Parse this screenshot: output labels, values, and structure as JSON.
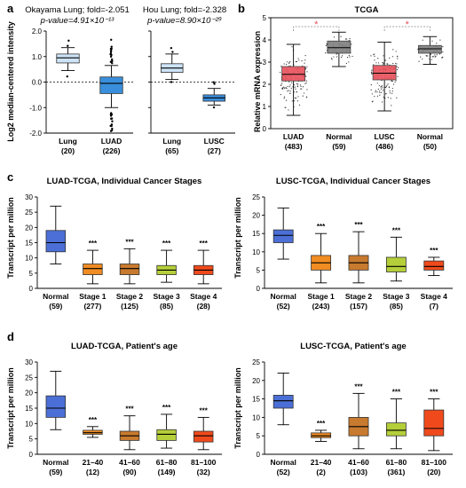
{
  "panels": {
    "a": {
      "label": "a",
      "ylabel": "Log2 median-centered intensity",
      "ylim": [
        -2.0,
        2.0
      ],
      "yticks": [
        "2.0",
        "1.0",
        "0.0",
        "-1.0",
        "-2.0"
      ],
      "left_title_line1": "Okayama Lung; fold=-2.051",
      "left_title_line2": "p-value=4.91×10⁻¹³",
      "right_title_line1": "Hou Lung; fold=-2.328",
      "right_title_line2": "p-value=8.90×10⁻²⁹"
    },
    "b": {
      "label": "b",
      "title": "TCGA",
      "ylabel": "Relative mRNA expression",
      "yticks": [
        "0",
        "1",
        "2",
        "3",
        "4",
        "5"
      ],
      "sig_marker": "*"
    },
    "c": {
      "label": "c",
      "ylabel": "Transcript per million",
      "sig_marker": "***"
    },
    "d": {
      "label": "d",
      "ylabel": "Transcript per million",
      "sig_marker": "***"
    }
  },
  "chart_data": [
    {
      "id": "a-left",
      "type": "box",
      "title": "Okayama Lung; fold=-2.051",
      "subtitle": "p-value=4.91×10⁻¹³",
      "ylabel": "Log2 median-centered intensity",
      "ylim": [
        -2.0,
        2.0
      ],
      "categories": [
        {
          "name": "Lung",
          "n": "(20)",
          "color": "#cde3f7",
          "stats": {
            "wlo": 0.45,
            "q1": 0.75,
            "med": 0.95,
            "q3": 1.1,
            "whi": 1.35
          }
        },
        {
          "name": "LUAD",
          "n": "(226)",
          "color": "#3a8fdc",
          "stats": {
            "wlo": -1.0,
            "q1": -0.45,
            "med": -0.05,
            "q3": 0.2,
            "whi": 0.65
          }
        }
      ]
    },
    {
      "id": "a-right",
      "type": "box",
      "title": "Hou Lung; fold=-2.328",
      "subtitle": "p-value=8.90×10⁻²⁹",
      "ylim": [
        -2.0,
        2.0
      ],
      "categories": [
        {
          "name": "Lung",
          "n": "(65)",
          "color": "#cde3f7",
          "stats": {
            "wlo": 0.1,
            "q1": 0.38,
            "med": 0.55,
            "q3": 0.72,
            "whi": 1.1
          }
        },
        {
          "name": "LUSC",
          "n": "(27)",
          "color": "#3a8fdc",
          "stats": {
            "wlo": -0.9,
            "q1": -0.75,
            "med": -0.62,
            "q3": -0.5,
            "whi": -0.25
          }
        }
      ]
    },
    {
      "id": "b",
      "type": "box",
      "title": "TCGA",
      "ylabel": "Relative mRNA expression",
      "ylim": [
        0,
        5
      ],
      "categories": [
        {
          "name": "LUAD",
          "n": "(483)",
          "color": "#e8505b",
          "stats": {
            "wlo": 0.6,
            "q1": 2.15,
            "med": 2.45,
            "q3": 2.8,
            "whi": 3.8
          }
        },
        {
          "name": "Normal",
          "n": "(59)",
          "color": "#7f7f7f",
          "stats": {
            "wlo": 2.8,
            "q1": 3.4,
            "med": 3.65,
            "q3": 3.95,
            "whi": 4.35
          }
        },
        {
          "name": "LUSC",
          "n": "(486)",
          "color": "#e8505b",
          "stats": {
            "wlo": 0.8,
            "q1": 2.2,
            "med": 2.5,
            "q3": 2.85,
            "whi": 3.9
          }
        },
        {
          "name": "Normal",
          "n": "(50)",
          "color": "#7f7f7f",
          "stats": {
            "wlo": 2.9,
            "q1": 3.4,
            "med": 3.6,
            "q3": 3.75,
            "whi": 4.15
          }
        }
      ],
      "significance": [
        "LUAD vs Normal",
        "LUSC vs Normal"
      ]
    },
    {
      "id": "c-left",
      "type": "box",
      "title": "LUAD-TCGA, Individual Cancer Stages",
      "ylabel": "Transcript per million",
      "ylim": [
        0,
        30
      ],
      "yticks": [
        "0",
        "5",
        "10",
        "15",
        "20",
        "25",
        "30"
      ],
      "categories": [
        {
          "name": "Normal",
          "n": "(59)",
          "color": "#4b6fd6",
          "stats": {
            "wlo": 8,
            "q1": 12,
            "med": 15,
            "q3": 19,
            "whi": 27
          },
          "sig": false
        },
        {
          "name": "Stage 1",
          "n": "(277)",
          "color": "#f08c22",
          "stats": {
            "wlo": 1.5,
            "q1": 4.5,
            "med": 6.5,
            "q3": 8,
            "whi": 12.5
          },
          "sig": true
        },
        {
          "name": "Stage 2",
          "n": "(125)",
          "color": "#c87a2e",
          "stats": {
            "wlo": 1.5,
            "q1": 4.5,
            "med": 6.5,
            "q3": 8,
            "whi": 13
          },
          "sig": true
        },
        {
          "name": "Stage 3",
          "n": "(85)",
          "color": "#b5cf3a",
          "stats": {
            "wlo": 2,
            "q1": 4.5,
            "med": 6,
            "q3": 7.5,
            "whi": 12.5
          },
          "sig": true
        },
        {
          "name": "Stage 4",
          "n": "(28)",
          "color": "#f04a1c",
          "stats": {
            "wlo": 1.5,
            "q1": 4.5,
            "med": 6,
            "q3": 7.5,
            "whi": 12.5
          },
          "sig": true
        }
      ]
    },
    {
      "id": "c-right",
      "type": "box",
      "title": "LUSC-TCGA, Individual Cancer Stages",
      "ylabel": "Transcript per million",
      "ylim": [
        0,
        25
      ],
      "yticks": [
        "0",
        "5",
        "10",
        "15",
        "20",
        "25"
      ],
      "categories": [
        {
          "name": "Normal",
          "n": "(52)",
          "color": "#4b6fd6",
          "stats": {
            "wlo": 8,
            "q1": 12.5,
            "med": 14.5,
            "q3": 16,
            "whi": 22
          },
          "sig": false
        },
        {
          "name": "Stage 1",
          "n": "(243)",
          "color": "#f08c22",
          "stats": {
            "wlo": 1.5,
            "q1": 5,
            "med": 7,
            "q3": 9,
            "whi": 15
          },
          "sig": true
        },
        {
          "name": "Stage 2",
          "n": "(157)",
          "color": "#c87a2e",
          "stats": {
            "wlo": 1.5,
            "q1": 5,
            "med": 7,
            "q3": 9,
            "whi": 15.5
          },
          "sig": true
        },
        {
          "name": "Stage 3",
          "n": "(85)",
          "color": "#b5cf3a",
          "stats": {
            "wlo": 2,
            "q1": 4.5,
            "med": 6,
            "q3": 8.5,
            "whi": 14
          },
          "sig": true
        },
        {
          "name": "Stage 4",
          "n": "(7)",
          "color": "#f04a1c",
          "stats": {
            "wlo": 3.5,
            "q1": 5,
            "med": 6,
            "q3": 7.5,
            "whi": 8.5
          },
          "sig": true
        }
      ]
    },
    {
      "id": "d-left",
      "type": "box",
      "title": "LUAD-TCGA, Patient's age",
      "ylabel": "Transcript per million",
      "ylim": [
        0,
        30
      ],
      "yticks": [
        "0",
        "5",
        "10",
        "15",
        "20",
        "25",
        "30"
      ],
      "categories": [
        {
          "name": "Normal",
          "n": "(59)",
          "color": "#4b6fd6",
          "stats": {
            "wlo": 8,
            "q1": 12,
            "med": 15,
            "q3": 19,
            "whi": 27
          },
          "sig": false
        },
        {
          "name": "21–40",
          "n": "(12)",
          "color": "#f08c22",
          "stats": {
            "wlo": 5.5,
            "q1": 6.5,
            "med": 7,
            "q3": 7.8,
            "whi": 9
          },
          "sig": true
        },
        {
          "name": "41–60",
          "n": "(90)",
          "color": "#c87a2e",
          "stats": {
            "wlo": 1.5,
            "q1": 4.5,
            "med": 6,
            "q3": 7.5,
            "whi": 12.5
          },
          "sig": true
        },
        {
          "name": "61–80",
          "n": "(149)",
          "color": "#b5cf3a",
          "stats": {
            "wlo": 2,
            "q1": 4.5,
            "med": 6.5,
            "q3": 8,
            "whi": 13
          },
          "sig": true
        },
        {
          "name": "81–100",
          "n": "(32)",
          "color": "#f04a1c",
          "stats": {
            "wlo": 1.5,
            "q1": 4,
            "med": 6,
            "q3": 7.5,
            "whi": 12
          },
          "sig": true
        }
      ]
    },
    {
      "id": "d-right",
      "type": "box",
      "title": "LUSC-TCGA, Patient's age",
      "ylabel": "Transcript per million",
      "ylim": [
        0,
        25
      ],
      "yticks": [
        "0",
        "5",
        "10",
        "15",
        "20",
        "25"
      ],
      "categories": [
        {
          "name": "Normal",
          "n": "(52)",
          "color": "#4b6fd6",
          "stats": {
            "wlo": 8,
            "q1": 12.5,
            "med": 14.5,
            "q3": 16,
            "whi": 22
          },
          "sig": false
        },
        {
          "name": "21–40",
          "n": "(2)",
          "color": "#f08c22",
          "stats": {
            "wlo": 3.5,
            "q1": 4.5,
            "med": 5,
            "q3": 5.8,
            "whi": 6.5
          },
          "sig": true
        },
        {
          "name": "41–60",
          "n": "(103)",
          "color": "#c87a2e",
          "stats": {
            "wlo": 1.5,
            "q1": 5,
            "med": 7.5,
            "q3": 10,
            "whi": 16.5
          },
          "sig": true
        },
        {
          "name": "61–80",
          "n": "(361)",
          "color": "#b5cf3a",
          "stats": {
            "wlo": 1.5,
            "q1": 5,
            "med": 6.5,
            "q3": 8.5,
            "whi": 15
          },
          "sig": true
        },
        {
          "name": "81–100",
          "n": "(20)",
          "color": "#f04a1c",
          "stats": {
            "wlo": 1,
            "q1": 5,
            "med": 7,
            "q3": 12,
            "whi": 15
          },
          "sig": true
        }
      ]
    }
  ]
}
